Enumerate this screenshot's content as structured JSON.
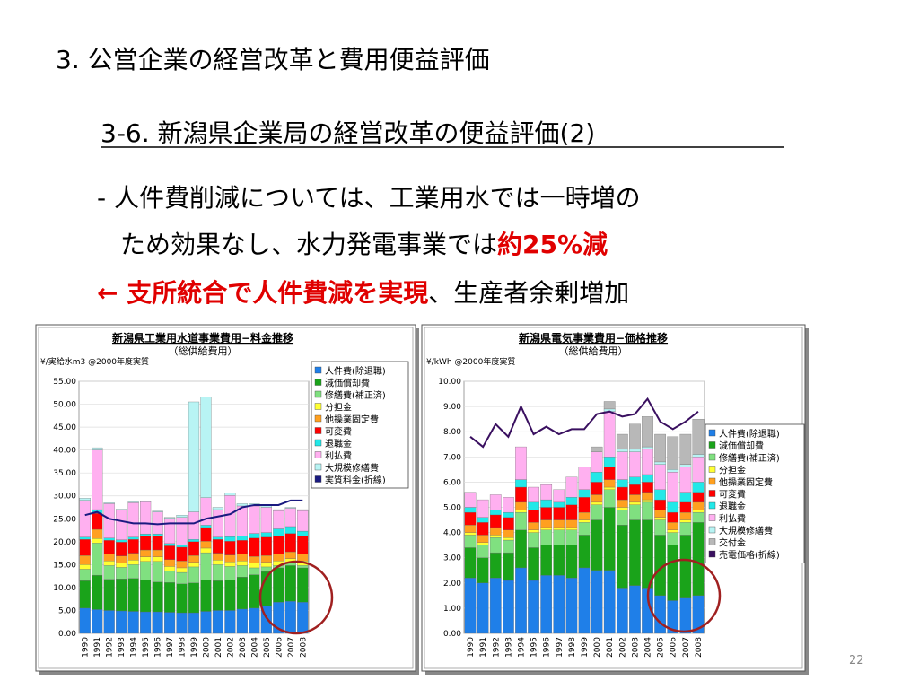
{
  "slide": {
    "title": "3. 公営企業の経営改革と費用便益評価",
    "subtitle": "3-6. 新潟県企業局の経営改革の便益評価(2)",
    "bullet_line1": "- 人件費削減については、工業用水では一時増の",
    "bullet_line2": "ため効果なし、水力発電事業では",
    "bullet_line2_emphasis": "約25%減",
    "bullet_line3_emphasis": "← 支所統合で人件費減を実現",
    "bullet_line3": "、生産者余剰増加",
    "page_number": "22"
  },
  "chart_data": [
    {
      "type": "bar",
      "stacked": true,
      "title": "新潟県工業用水道事業費用−料金推移",
      "subtitle": "（総供給費用）",
      "unit_label": "¥/実給水m3 @2000年度実質",
      "categories": [
        "1990",
        "1991",
        "1992",
        "1993",
        "1994",
        "1995",
        "1996",
        "1997",
        "1998",
        "1999",
        "2000",
        "2001",
        "2002",
        "2003",
        "2004",
        "2005",
        "2006",
        "2007",
        "2008"
      ],
      "ylim": [
        0,
        55
      ],
      "grid": true,
      "yticks": [
        {
          "value": 0,
          "label": "0.00"
        },
        {
          "value": 5,
          "label": "5.00"
        },
        {
          "value": 10,
          "label": "10.00"
        },
        {
          "value": 15,
          "label": "15.00"
        },
        {
          "value": 20,
          "label": "20.00"
        },
        {
          "value": 25,
          "label": "25.00"
        },
        {
          "value": 30,
          "label": "30.00"
        },
        {
          "value": 35,
          "label": "35.00"
        },
        {
          "value": 40,
          "label": "40.00"
        },
        {
          "value": 45,
          "label": "45.00"
        },
        {
          "value": 50,
          "label": "50.00"
        },
        {
          "value": 55,
          "label": "55.00"
        }
      ],
      "series": [
        {
          "name": "人件費(除退職)",
          "color": "#1f7fe8",
          "values": [
            5.5,
            5.2,
            5.0,
            4.9,
            4.8,
            4.7,
            4.7,
            4.6,
            4.5,
            4.5,
            4.8,
            5.0,
            5.0,
            5.3,
            5.5,
            6.0,
            6.8,
            7.0,
            6.8
          ]
        },
        {
          "name": "減価償却費",
          "color": "#1aa31a",
          "values": [
            6.0,
            7.5,
            6.8,
            7.0,
            7.2,
            7.0,
            6.5,
            6.5,
            6.3,
            6.5,
            6.8,
            6.5,
            6.6,
            7.0,
            7.3,
            7.5,
            7.5,
            7.8,
            7.5
          ]
        },
        {
          "name": "修繕費(補正済)",
          "color": "#80e080",
          "values": [
            2.5,
            7.0,
            3.0,
            2.5,
            3.0,
            4.0,
            4.5,
            2.5,
            2.5,
            3.5,
            6.0,
            3.5,
            3.0,
            2.5,
            1.5,
            1.0,
            0.5,
            0.5,
            0.5
          ]
        },
        {
          "name": "分担金",
          "color": "#ffff33",
          "values": [
            1,
            1,
            1,
            1,
            1,
            1,
            1,
            1,
            1,
            1,
            1,
            1,
            1,
            1,
            1,
            1,
            1,
            1,
            1
          ]
        },
        {
          "name": "他操業固定費",
          "color": "#ffa020",
          "values": [
            2.0,
            2.0,
            1.5,
            1.5,
            1.5,
            1.5,
            1.5,
            1.5,
            1.5,
            1.5,
            1.5,
            1.5,
            1.5,
            1.5,
            1.5,
            1.5,
            1.5,
            1.5,
            1.5
          ]
        },
        {
          "name": "可変費",
          "color": "#ff0000",
          "values": [
            3.5,
            3.5,
            3,
            3,
            3,
            3,
            3,
            3,
            3,
            3,
            3,
            3,
            3,
            3,
            4,
            4,
            4,
            4,
            4
          ]
        },
        {
          "name": "退職金",
          "color": "#22e8e8",
          "values": [
            0.5,
            0.8,
            0.5,
            0.5,
            0.5,
            0.5,
            0.5,
            0.5,
            0.5,
            0.5,
            0.5,
            0.5,
            1,
            1,
            1,
            1,
            1.5,
            1.5,
            1
          ]
        },
        {
          "name": "利払費",
          "color": "#ffb0f0",
          "values": [
            8.0,
            13.0,
            7.5,
            6.5,
            7.5,
            7.0,
            4.8,
            5.5,
            6.0,
            6.0,
            6.0,
            6.0,
            9.0,
            6.5,
            6.0,
            5.5,
            4.0,
            4.0,
            4.5
          ]
        },
        {
          "name": "大規模修繕費",
          "color": "#b8f4f4",
          "values": [
            0.5,
            0.5,
            0.2,
            0.2,
            0.2,
            0.2,
            0.2,
            0.2,
            0.5,
            24,
            22,
            0.5,
            0.5,
            0.5,
            0.5,
            0.5,
            0.2,
            0.2,
            0.2
          ]
        },
        {
          "name": "実質料金(折線)",
          "color": "#1a1a80",
          "type": "line",
          "values": [
            25.8,
            26.5,
            25,
            24.5,
            24,
            24,
            23.8,
            24,
            24,
            24,
            25,
            25.5,
            26,
            27.5,
            28,
            28,
            28,
            29,
            29
          ]
        }
      ]
    },
    {
      "type": "bar",
      "stacked": true,
      "title": "新潟県電気事業費用−価格推移",
      "subtitle": "（総供給費用）",
      "unit_label": "¥/kWh @2000年度実質",
      "categories": [
        "1990",
        "1991",
        "1992",
        "1993",
        "1994",
        "1995",
        "1996",
        "1997",
        "1998",
        "1999",
        "2000",
        "2001",
        "2002",
        "2003",
        "2004",
        "2005",
        "2006",
        "2007",
        "2008"
      ],
      "ylim": [
        0,
        10
      ],
      "grid": true,
      "yticks": [
        {
          "value": 0,
          "label": "0.00"
        },
        {
          "value": 1,
          "label": "1.00"
        },
        {
          "value": 2,
          "label": "2.00"
        },
        {
          "value": 3,
          "label": "3.00"
        },
        {
          "value": 4,
          "label": "4.00"
        },
        {
          "value": 5,
          "label": "5.00"
        },
        {
          "value": 6,
          "label": "6.00"
        },
        {
          "value": 7,
          "label": "7.00"
        },
        {
          "value": 8,
          "label": "8.00"
        },
        {
          "value": 9,
          "label": "9.00"
        },
        {
          "value": 10,
          "label": "10.00"
        }
      ],
      "series": [
        {
          "name": "人件費(除退職)",
          "color": "#1f7fe8",
          "values": [
            2.2,
            2.0,
            2.2,
            2.1,
            2.6,
            2.1,
            2.3,
            2.3,
            2.2,
            2.6,
            2.5,
            2.5,
            1.8,
            1.9,
            1.8,
            1.5,
            1.3,
            1.4,
            1.5
          ]
        },
        {
          "name": "減価償却費",
          "color": "#1aa31a",
          "values": [
            1.2,
            1.0,
            1.0,
            1.1,
            1.5,
            1.3,
            1.2,
            1.2,
            1.3,
            1.3,
            2.0,
            2.5,
            2.5,
            2.6,
            2.7,
            2.4,
            2.2,
            2.5,
            2.9
          ]
        },
        {
          "name": "修繕費(補正済)",
          "color": "#80e080",
          "values": [
            0.5,
            0.5,
            0.6,
            0.5,
            0.7,
            0.6,
            0.6,
            0.6,
            0.6,
            0.5,
            0.6,
            0.7,
            0.6,
            0.6,
            0.7,
            0.6,
            0.5,
            0.5,
            0.4
          ]
        },
        {
          "name": "分担金",
          "color": "#ffff33",
          "values": [
            0.1,
            0.1,
            0.1,
            0.1,
            0.1,
            0.1,
            0.1,
            0.1,
            0.1,
            0.1,
            0.1,
            0.1,
            0.1,
            0.1,
            0.1,
            0.1,
            0.1,
            0.1,
            0.1
          ]
        },
        {
          "name": "他操業固定費",
          "color": "#ffa020",
          "values": [
            0.3,
            0.3,
            0.3,
            0.3,
            0.3,
            0.3,
            0.3,
            0.3,
            0.3,
            0.3,
            0.3,
            0.3,
            0.3,
            0.3,
            0.3,
            0.3,
            0.3,
            0.3,
            0.3
          ]
        },
        {
          "name": "可変費",
          "color": "#ff0000",
          "values": [
            0.5,
            0.5,
            0.5,
            0.5,
            0.6,
            0.5,
            0.5,
            0.5,
            0.6,
            0.6,
            0.5,
            0.5,
            0.5,
            0.4,
            0.4,
            0.4,
            0.4,
            0.4,
            0.4
          ]
        },
        {
          "name": "退職金",
          "color": "#22e8e8",
          "values": [
            0.2,
            0.2,
            0.2,
            0.2,
            0.3,
            0.3,
            0.3,
            0.2,
            0.3,
            0.3,
            0.4,
            0.4,
            0.3,
            0.3,
            0.3,
            0.4,
            0.4,
            0.4,
            0.4
          ]
        },
        {
          "name": "利払費",
          "color": "#ffb0f0",
          "values": [
            0.6,
            0.7,
            0.6,
            0.6,
            1.3,
            0.6,
            0.6,
            0.5,
            0.8,
            0.9,
            0.8,
            1.8,
            1.1,
            1.0,
            1.0,
            1.0,
            1.2,
            1.0,
            1.0
          ]
        },
        {
          "name": "大規模修繕費",
          "color": "#b8f4f4",
          "values": [
            0,
            0,
            0,
            0,
            0,
            0,
            0,
            0,
            0,
            0,
            0,
            0.1,
            0.1,
            0.1,
            0.1,
            0.1,
            0.1,
            0.1,
            0.1
          ]
        },
        {
          "name": "交付金",
          "color": "#b8b8b8",
          "values": [
            0,
            0,
            0,
            0,
            0,
            0,
            0,
            0,
            0,
            0,
            0.2,
            0.3,
            0.6,
            1.0,
            1.2,
            1.1,
            1.3,
            1.2,
            1.4
          ]
        },
        {
          "name": "売電価格(折線)",
          "color": "#3a1060",
          "type": "line",
          "values": [
            7.8,
            7.4,
            8.3,
            7.8,
            9.0,
            7.9,
            8.2,
            7.9,
            8.1,
            8.1,
            8.7,
            8.8,
            8.6,
            8.7,
            9.3,
            8.4,
            8.1,
            8.4,
            8.8
          ]
        }
      ]
    }
  ]
}
